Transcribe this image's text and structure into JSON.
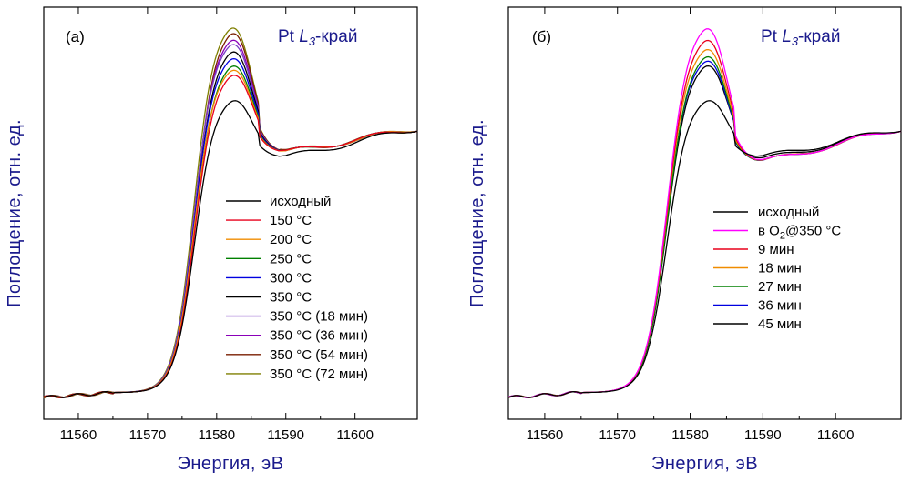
{
  "chart_data": [
    {
      "type": "line",
      "panel_label": "(а)",
      "edge_label": {
        "element": "Pt",
        "edge": "L",
        "subscript": "3",
        "suffix": "-край"
      },
      "xlabel": "Энергия, эВ",
      "ylabel": "Поглощение, отн. ед.",
      "xlim": [
        11555,
        11609
      ],
      "ylim": [
        0,
        1.7
      ],
      "x_ticks": [
        11560,
        11570,
        11580,
        11590,
        11600
      ],
      "y_ticks_shown": false,
      "grid": false,
      "legend_position": "right-center",
      "series": [
        {
          "name": "исходный",
          "color": "#000000",
          "peak": 1.34,
          "trough": 1.08,
          "final": 1.2
        },
        {
          "name": "150 °C",
          "color": "#e8001c",
          "peak": 1.45,
          "trough": 1.1,
          "final": 1.2
        },
        {
          "name": "200 °C",
          "color": "#f08c00",
          "peak": 1.47,
          "trough": 1.1,
          "final": 1.2
        },
        {
          "name": "250 °C",
          "color": "#008000",
          "peak": 1.49,
          "trough": 1.1,
          "final": 1.2
        },
        {
          "name": "300 °C",
          "color": "#0000e0",
          "peak": 1.52,
          "trough": 1.1,
          "final": 1.2
        },
        {
          "name": "350 °C",
          "color": "#000000",
          "peak": 1.55,
          "trough": 1.1,
          "final": 1.2
        },
        {
          "name": "350 °C (18 мин)",
          "color": "#7b3fc6",
          "peak": 1.58,
          "trough": 1.1,
          "final": 1.2
        },
        {
          "name": "350 °C (36 мин)",
          "color": "#8a00b8",
          "peak": 1.6,
          "trough": 1.1,
          "final": 1.2
        },
        {
          "name": "350 °C (54 мин)",
          "color": "#7a1e00",
          "peak": 1.63,
          "trough": 1.1,
          "final": 1.2
        },
        {
          "name": "350 °C (72 мин)",
          "color": "#7f7f00",
          "peak": 1.65,
          "trough": 1.1,
          "final": 1.2
        }
      ]
    },
    {
      "type": "line",
      "panel_label": "(б)",
      "edge_label": {
        "element": "Pt",
        "edge": "L",
        "subscript": "3",
        "suffix": "-край"
      },
      "xlabel": "Энергия, эВ",
      "ylabel": "Поглощение, отн. ед.",
      "xlim": [
        11555,
        11609
      ],
      "ylim": [
        0,
        1.7
      ],
      "x_ticks": [
        11560,
        11570,
        11580,
        11590,
        11600
      ],
      "y_ticks_shown": false,
      "grid": false,
      "legend_position": "right-center",
      "series": [
        {
          "name": "исходный",
          "color": "#000000",
          "peak": 1.34,
          "trough": 1.08,
          "final": 1.2
        },
        {
          "name": "в O2@350 °C",
          "color": "#ff00ff",
          "peak": 1.65,
          "trough": 1.06,
          "final": 1.2
        },
        {
          "name": "9 мин",
          "color": "#e8001c",
          "peak": 1.6,
          "trough": 1.06,
          "final": 1.2
        },
        {
          "name": "18 мин",
          "color": "#f08c00",
          "peak": 1.56,
          "trough": 1.06,
          "final": 1.2
        },
        {
          "name": "27 мин",
          "color": "#008000",
          "peak": 1.53,
          "trough": 1.06,
          "final": 1.2
        },
        {
          "name": "36 мин",
          "color": "#0000e0",
          "peak": 1.51,
          "trough": 1.06,
          "final": 1.2
        },
        {
          "name": "45 мин",
          "color": "#000000",
          "peak": 1.49,
          "trough": 1.07,
          "final": 1.2
        }
      ]
    }
  ]
}
